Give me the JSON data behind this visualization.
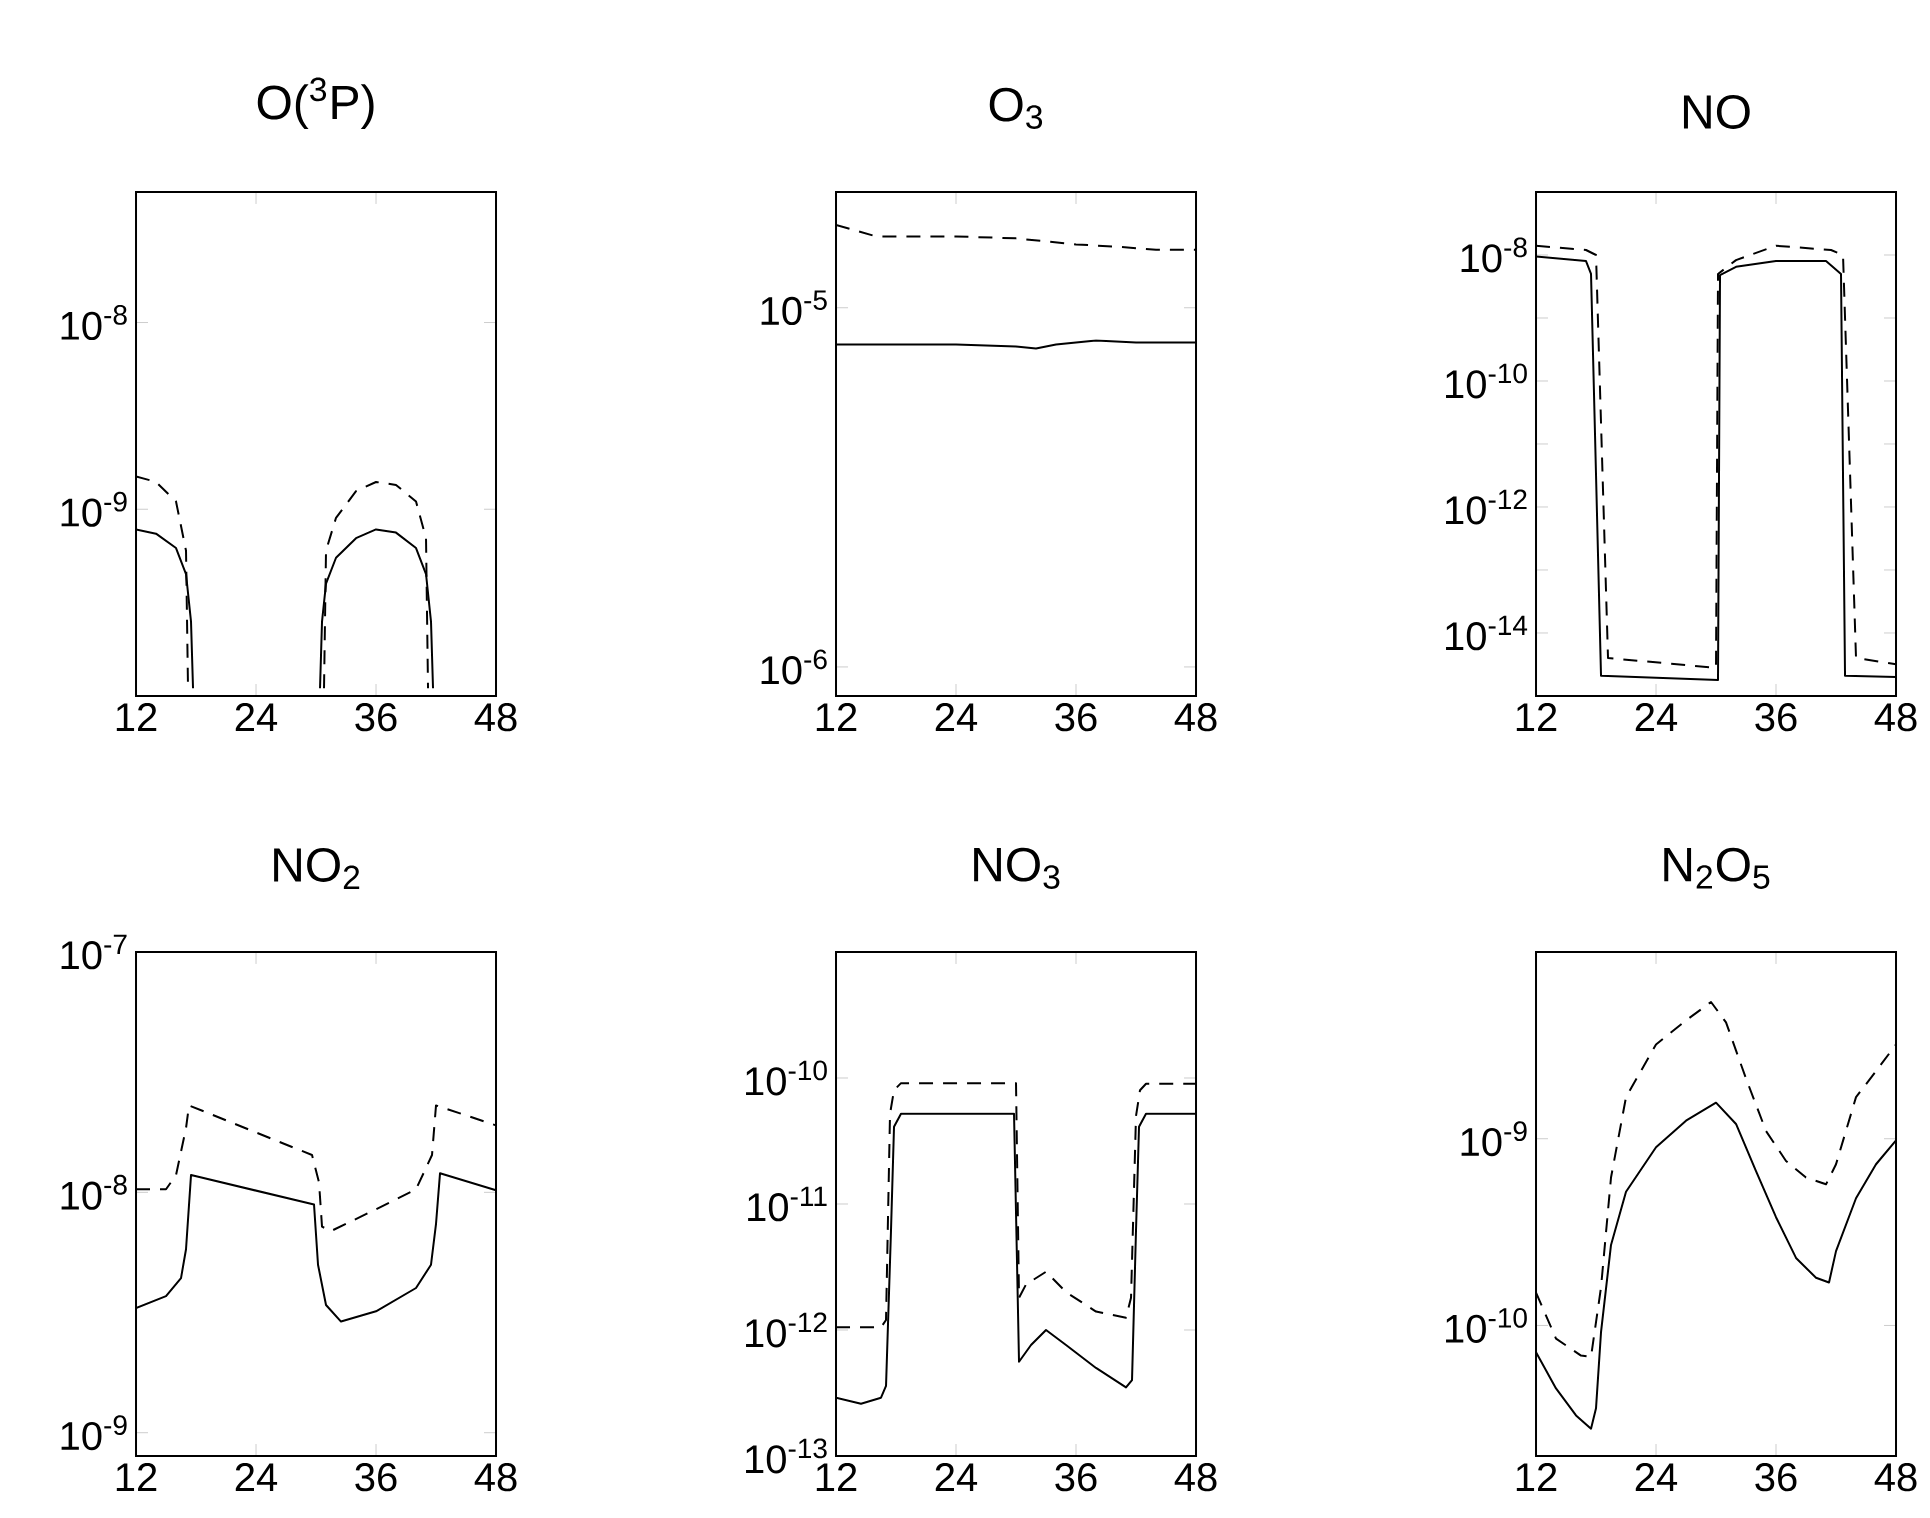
{
  "chart_data": [
    {
      "type": "line",
      "title": "O($^{3}$P)",
      "xlim": [
        12,
        48
      ],
      "xticks": [
        12,
        24,
        36,
        48
      ],
      "ylim": [
        1e-10,
        5e-08
      ],
      "log": "y",
      "yticks": [
        {
          "value": 1e-08,
          "label": "10$^{-8}$"
        },
        {
          "value": 1e-09,
          "label": "10$^{-9}$"
        }
      ],
      "series": [
        {
          "color": "#000000",
          "line_style": "solid",
          "x": [
            12,
            14,
            16,
            17,
            17.5,
            17.7,
            24,
            30.4,
            30.6,
            31,
            32,
            34,
            36,
            38,
            40,
            41,
            41.5,
            41.7
          ],
          "values": [
            7.8e-10,
            7.4e-10,
            6.2e-10,
            4.5e-10,
            2.5e-10,
            1.1e-10,
            null,
            1.1e-10,
            2.5e-10,
            4e-10,
            5.5e-10,
            7e-10,
            7.8e-10,
            7.5e-10,
            6.2e-10,
            4.5e-10,
            2.5e-10,
            1.1e-10
          ]
        },
        {
          "color": "#000000",
          "line_style": "dashed",
          "x": [
            12,
            14,
            16,
            17,
            17.2,
            24,
            30.8,
            31,
            32,
            34,
            36,
            38,
            40,
            41,
            41.2
          ],
          "values": [
            1.5e-09,
            1.4e-09,
            1.1e-09,
            6e-10,
            1.1e-10,
            null,
            1.1e-10,
            6e-10,
            9e-10,
            1.25e-09,
            1.4e-09,
            1.35e-09,
            1.1e-09,
            7e-10,
            1.1e-10
          ]
        }
      ]
    },
    {
      "type": "line",
      "title": "O$_{3}$",
      "xlim": [
        12,
        48
      ],
      "xticks": [
        12,
        24,
        36,
        48
      ],
      "ylim": [
        8.3e-07,
        2.1e-05
      ],
      "log": "y",
      "yticks": [
        {
          "value": 1e-05,
          "label": "10$^{-5}$"
        },
        {
          "value": 1e-06,
          "label": "10$^{-6}$"
        }
      ],
      "series": [
        {
          "color": "#000000",
          "line_style": "solid",
          "x": [
            12,
            16,
            24,
            30,
            32,
            34,
            38,
            42,
            48
          ],
          "values": [
            7.9e-06,
            7.9e-06,
            7.9e-06,
            7.8e-06,
            7.7e-06,
            7.9e-06,
            8.1e-06,
            8e-06,
            8e-06
          ]
        },
        {
          "color": "#000000",
          "line_style": "dashed",
          "x": [
            12,
            16,
            24,
            30,
            36,
            40,
            44,
            48
          ],
          "values": [
            1.7e-05,
            1.58e-05,
            1.58e-05,
            1.56e-05,
            1.5e-05,
            1.48e-05,
            1.45e-05,
            1.45e-05
          ]
        }
      ]
    },
    {
      "type": "line",
      "title": "NO",
      "xlim": [
        12,
        48
      ],
      "xticks": [
        12,
        24,
        36,
        48
      ],
      "ylim": [
        1e-15,
        1e-07
      ],
      "log": "y",
      "yticks": [
        {
          "value": 1e-08,
          "label": "10$^{-8}$"
        },
        {
          "value": 1e-09,
          "label": null
        },
        {
          "value": 1e-10,
          "label": "10$^{-10}$"
        },
        {
          "value": 1e-11,
          "label": null
        },
        {
          "value": 1e-12,
          "label": "10$^{-12}$"
        },
        {
          "value": 1e-13,
          "label": null
        },
        {
          "value": 1e-14,
          "label": "10$^{-14}$"
        }
      ],
      "series": [
        {
          "color": "#000000",
          "line_style": "solid",
          "x": [
            12,
            17,
            17.5,
            18.5,
            30.2,
            30.4,
            32,
            36,
            41,
            42.5,
            42.9,
            48
          ],
          "values": [
            9.5e-09,
            8e-09,
            5e-09,
            2.1e-15,
            1.8e-15,
            4.8e-09,
            6.5e-09,
            8e-09,
            8e-09,
            5e-09,
            2.1e-15,
            2e-15
          ]
        },
        {
          "color": "#000000",
          "line_style": "dashed",
          "x": [
            12,
            17,
            18,
            19.2,
            30,
            30.2,
            32,
            36,
            41.5,
            42.7,
            44,
            48
          ],
          "values": [
            1.4e-08,
            1.2e-08,
            1e-08,
            4e-15,
            2.8e-15,
            5e-09,
            8.3e-09,
            1.4e-08,
            1.2e-08,
            1e-08,
            4e-15,
            3.2e-15
          ]
        }
      ]
    },
    {
      "type": "line",
      "title": "NO$_{2}$",
      "xlim": [
        12,
        48
      ],
      "xticks": [
        12,
        24,
        36,
        48
      ],
      "ylim": [
        8e-10,
        1e-07
      ],
      "log": "y",
      "yticks": [
        {
          "value": 1e-07,
          "label": "10$^{-7}$"
        },
        {
          "value": 1e-08,
          "label": "10$^{-8}$"
        },
        {
          "value": 1e-09,
          "label": "10$^{-9}$"
        }
      ],
      "series": [
        {
          "color": "#000000",
          "line_style": "solid",
          "x": [
            12,
            15,
            16.5,
            17,
            17.5,
            29.8,
            30.2,
            31,
            32.5,
            36,
            40,
            41.5,
            42,
            42.4,
            48
          ],
          "values": [
            3.3e-09,
            3.7e-09,
            4.4e-09,
            5.8e-09,
            1.18e-08,
            8.9e-09,
            5e-09,
            3.4e-09,
            2.9e-09,
            3.2e-09,
            4e-09,
            5e-09,
            7.4e-09,
            1.2e-08,
            1.02e-08
          ]
        },
        {
          "color": "#000000",
          "line_style": "dashed",
          "x": [
            12,
            15,
            16,
            17,
            17.3,
            29.6,
            30.3,
            30.6,
            31.5,
            36,
            40,
            41.6,
            42,
            48
          ],
          "values": [
            1.03e-08,
            1.03e-08,
            1.18e-08,
            1.85e-08,
            2.3e-08,
            1.43e-08,
            1.1e-08,
            7.2e-09,
            6.9e-09,
            8.5e-09,
            1.03e-08,
            1.43e-08,
            2.3e-08,
            1.9e-08
          ]
        }
      ]
    },
    {
      "type": "line",
      "title": "NO$_{3}$",
      "xlim": [
        12,
        48
      ],
      "xticks": [
        12,
        24,
        36,
        48
      ],
      "ylim": [
        1e-13,
        1e-09
      ],
      "log": "y",
      "yticks": [
        {
          "value": 1e-10,
          "label": "10$^{-10}$"
        },
        {
          "value": 1e-11,
          "label": "10$^{-11}$"
        },
        {
          "value": 1e-12,
          "label": "10$^{-12}$"
        },
        {
          "value": 1e-13,
          "label": "10$^{-13}$"
        }
      ],
      "series": [
        {
          "color": "#000000",
          "line_style": "solid",
          "x": [
            12,
            14.5,
            16.5,
            17,
            17.5,
            17.8,
            18.5,
            29.8,
            30.3,
            31.5,
            33,
            35,
            38,
            41,
            41.6,
            42,
            42.3,
            43,
            48
          ],
          "values": [
            2.9e-13,
            2.6e-13,
            2.9e-13,
            3.6e-13,
            6.2e-12,
            4.1e-11,
            5.2e-11,
            5.2e-11,
            5.6e-13,
            7.6e-13,
            1e-12,
            7.6e-13,
            5e-13,
            3.5e-13,
            4e-13,
            6.2e-12,
            4.1e-11,
            5.2e-11,
            5.2e-11
          ]
        },
        {
          "color": "#000000",
          "line_style": "dashed",
          "x": [
            12,
            16.5,
            17,
            17.4,
            17.8,
            18.5,
            30,
            30.3,
            31,
            33,
            35,
            38,
            41,
            41.5,
            42,
            42.4,
            43,
            48
          ],
          "values": [
            1.05e-12,
            1.05e-12,
            1.2e-12,
            5.2e-11,
            8e-11,
            9.1e-11,
            9.1e-11,
            1.8e-12,
            2.3e-12,
            2.9e-12,
            2e-12,
            1.4e-12,
            1.25e-12,
            1.8e-12,
            5e-11,
            8e-11,
            9e-11,
            9e-11
          ]
        }
      ]
    },
    {
      "type": "line",
      "title": "N$_{2}$O$_{5}$",
      "xlim": [
        12,
        48
      ],
      "xticks": [
        12,
        24,
        36,
        48
      ],
      "ylim": [
        2e-11,
        1e-08
      ],
      "log": "y",
      "yticks": [
        {
          "value": 1e-09,
          "label": "10$^{-9}$"
        },
        {
          "value": 1e-10,
          "label": "10$^{-10}$"
        }
      ],
      "series": [
        {
          "color": "#000000",
          "line_style": "solid",
          "x": [
            12,
            14,
            16,
            17.5,
            18,
            18.5,
            19.5,
            21,
            24,
            27,
            30,
            32,
            34,
            36,
            38,
            40,
            41.3,
            42,
            44,
            46,
            48
          ],
          "values": [
            7.2e-11,
            4.6e-11,
            3.3e-11,
            2.8e-11,
            3.6e-11,
            9.2e-11,
            2.7e-10,
            5.2e-10,
            9e-10,
            1.25e-09,
            1.56e-09,
            1.2e-09,
            6.7e-10,
            3.8e-10,
            2.3e-10,
            1.8e-10,
            1.7e-10,
            2.5e-10,
            4.8e-10,
            7.3e-10,
            9.8e-10
          ]
        },
        {
          "color": "#000000",
          "line_style": "dashed",
          "x": [
            12,
            14,
            16.5,
            17.5,
            18.5,
            19.5,
            21,
            24,
            27,
            29.5,
            31,
            33,
            35,
            37,
            39,
            41,
            42,
            44,
            46,
            48
          ],
          "values": [
            1.5e-10,
            8.5e-11,
            6.9e-11,
            6.8e-11,
            1.6e-10,
            6.2e-10,
            1.67e-09,
            3.2e-09,
            4.3e-09,
            5.4e-09,
            4.2e-09,
            2.1e-09,
            1.1e-09,
            7.6e-10,
            6.2e-10,
            5.7e-10,
            7.3e-10,
            1.67e-09,
            2.3e-09,
            3.2e-09
          ]
        }
      ]
    }
  ]
}
